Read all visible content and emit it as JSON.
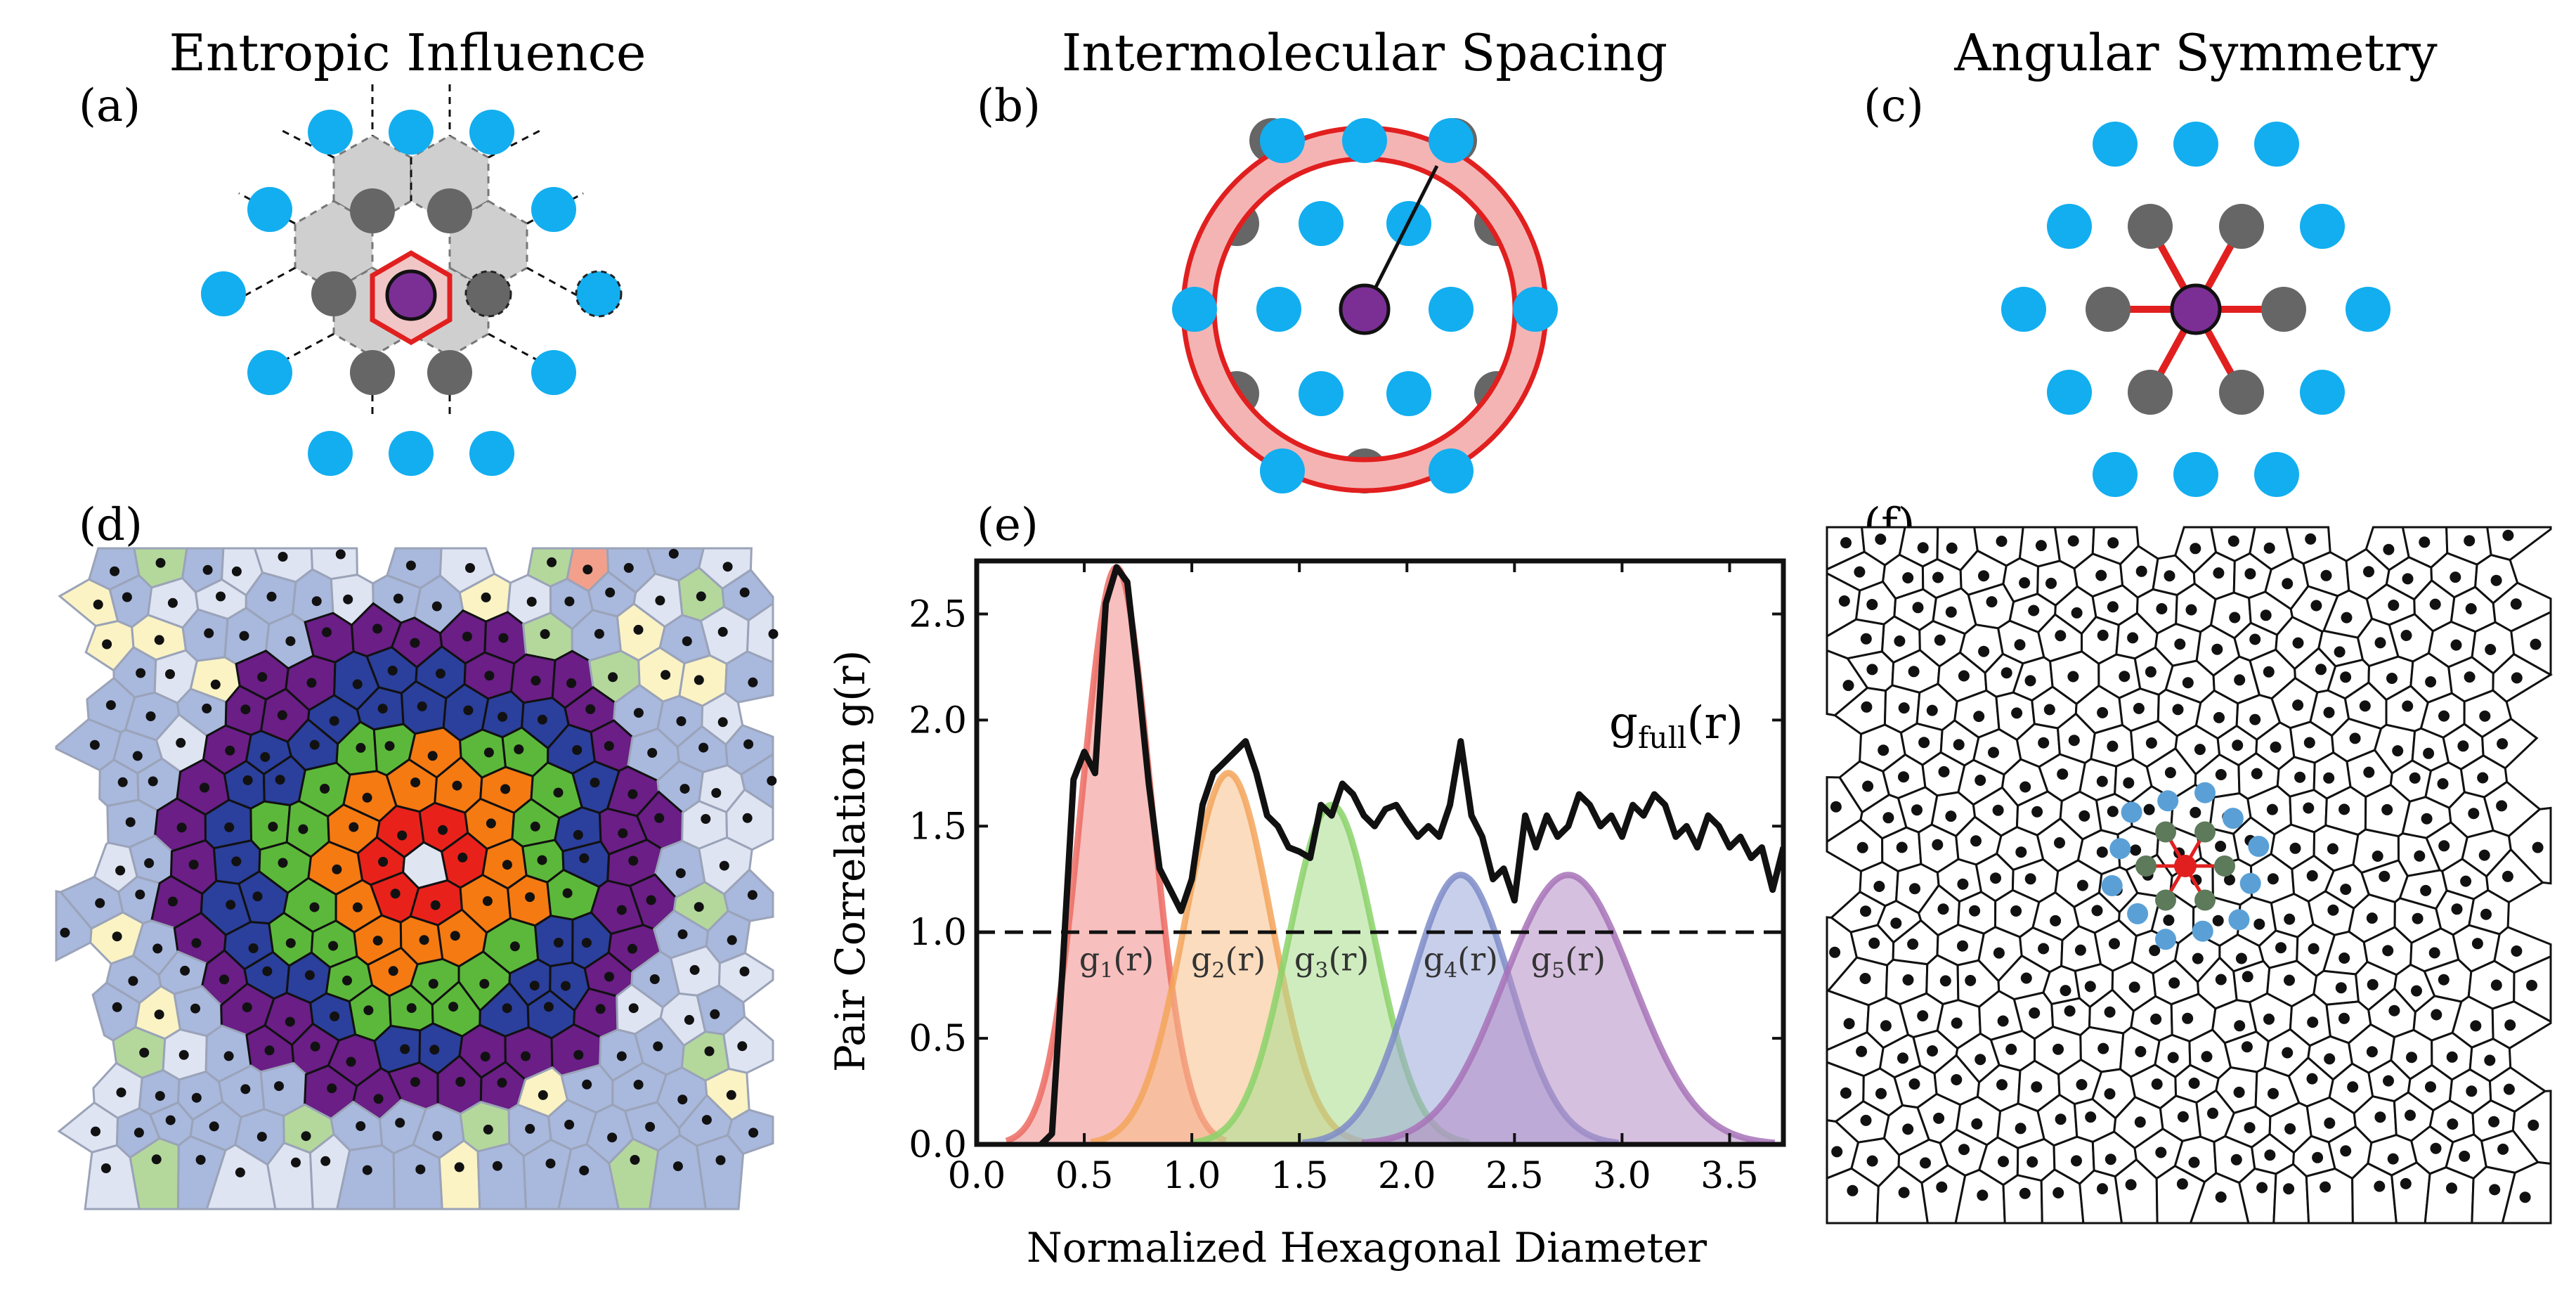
{
  "panels": {
    "a": {
      "label": "(a)",
      "title": "Entropic Influence"
    },
    "b": {
      "label": "(b)",
      "title": "Intermolecular Spacing"
    },
    "c": {
      "label": "(c)",
      "title": "Angular Symmetry"
    },
    "d": {
      "label": "(d)"
    },
    "e": {
      "label": "(e)"
    },
    "f": {
      "label": "(f)"
    }
  },
  "colors": {
    "blue": "#12aef0",
    "gray": "#666666",
    "purple": "#7b2f95",
    "red": "#e11f1f",
    "shell_colors": [
      "#e8221b",
      "#f57a12",
      "#5cb83a",
      "#2b3f9c",
      "#6a1e86"
    ],
    "bg_cell": "#cfd6ea",
    "pink_cell": "#f2a08b",
    "cream_cell": "#fbf3c4",
    "green_cell": "#b4d89c"
  },
  "chart_data": {
    "type": "line",
    "xlabel": "Normalized Hexagonal Diameter",
    "ylabel": "Pair Correlation  g(r)",
    "xlim": [
      0.0,
      3.75
    ],
    "ylim": [
      0.0,
      2.75
    ],
    "xticks": [
      "0.0",
      "0.5",
      "1.0",
      "1.5",
      "2.0",
      "2.5",
      "3.0",
      "3.5"
    ],
    "yticks": [
      "0.0",
      "0.5",
      "1.0",
      "1.5",
      "2.0",
      "2.5"
    ],
    "reference_line": {
      "y": 1.0,
      "style": "dashed"
    },
    "full_label": "g",
    "full_label_sub": "full",
    "full_label_suffix": "(r)",
    "series": [
      {
        "name": "g_full(r)",
        "x": [
          0.3,
          0.35,
          0.4,
          0.45,
          0.5,
          0.55,
          0.6,
          0.65,
          0.7,
          0.75,
          0.8,
          0.85,
          0.9,
          0.95,
          1.0,
          1.05,
          1.1,
          1.15,
          1.2,
          1.25,
          1.3,
          1.35,
          1.4,
          1.45,
          1.5,
          1.55,
          1.6,
          1.65,
          1.7,
          1.75,
          1.8,
          1.85,
          1.9,
          1.95,
          2.0,
          2.05,
          2.1,
          2.15,
          2.2,
          2.25,
          2.3,
          2.35,
          2.4,
          2.45,
          2.5,
          2.55,
          2.6,
          2.65,
          2.7,
          2.75,
          2.8,
          2.85,
          2.9,
          2.95,
          3.0,
          3.05,
          3.1,
          3.15,
          3.2,
          3.25,
          3.3,
          3.35,
          3.4,
          3.45,
          3.5,
          3.55,
          3.6,
          3.65,
          3.7,
          3.75
        ],
        "values": [
          0.0,
          0.05,
          0.85,
          1.72,
          1.85,
          1.75,
          2.55,
          2.72,
          2.65,
          2.2,
          1.7,
          1.3,
          1.2,
          1.1,
          1.25,
          1.6,
          1.75,
          1.8,
          1.85,
          1.9,
          1.75,
          1.55,
          1.5,
          1.4,
          1.38,
          1.35,
          1.6,
          1.55,
          1.7,
          1.65,
          1.55,
          1.5,
          1.58,
          1.6,
          1.52,
          1.45,
          1.5,
          1.45,
          1.6,
          1.9,
          1.55,
          1.45,
          1.25,
          1.3,
          1.15,
          1.55,
          1.4,
          1.55,
          1.45,
          1.5,
          1.65,
          1.6,
          1.5,
          1.55,
          1.45,
          1.6,
          1.55,
          1.65,
          1.6,
          1.45,
          1.5,
          1.4,
          1.55,
          1.5,
          1.4,
          1.45,
          1.35,
          1.4,
          1.2,
          1.4
        ]
      },
      {
        "name": "g",
        "sub": "1",
        "suffix": "(r)",
        "peak": 0.65,
        "height": 2.72,
        "width": 0.16
      },
      {
        "name": "g",
        "sub": "2",
        "suffix": "(r)",
        "peak": 1.17,
        "height": 1.75,
        "width": 0.2
      },
      {
        "name": "g",
        "sub": "3",
        "suffix": "(r)",
        "peak": 1.65,
        "height": 1.6,
        "width": 0.2
      },
      {
        "name": "g",
        "sub": "4",
        "suffix": "(r)",
        "peak": 2.25,
        "height": 1.27,
        "width": 0.23
      },
      {
        "name": "g",
        "sub": "5",
        "suffix": "(r)",
        "peak": 2.75,
        "height": 1.27,
        "width": 0.3
      }
    ]
  }
}
